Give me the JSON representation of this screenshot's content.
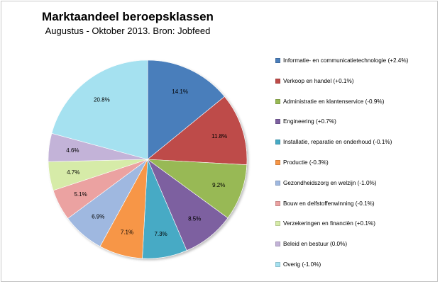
{
  "chart_data": {
    "type": "pie",
    "title": "Marktaandeel beroepsklassen",
    "subtitle": "Augustus - Oktober 2013. Bron: Jobfeed",
    "slices": [
      {
        "legend": "Informatie- en communicatietechnologie (+2.4%)",
        "value": 14.1,
        "label": "14.1%",
        "color": "#4a7ebb"
      },
      {
        "legend": "Verkoop en handel (+0.1%)",
        "value": 11.8,
        "label": "11.8%",
        "color": "#be4b48"
      },
      {
        "legend": "Administratie en klantenservice (-0.9%)",
        "value": 9.2,
        "label": "9.2%",
        "color": "#98b954"
      },
      {
        "legend": "Engineering (+0.7%)",
        "value": 8.5,
        "label": "8.5%",
        "color": "#7d60a0"
      },
      {
        "legend": "Installatie, reparatie en onderhoud (-0.1%)",
        "value": 7.3,
        "label": "7.3%",
        "color": "#46aac5"
      },
      {
        "legend": "Productie (-0.3%)",
        "value": 7.1,
        "label": "7.1%",
        "color": "#f79646"
      },
      {
        "legend": "Gezondheidszorg en welzijn (-1.0%)",
        "value": 6.9,
        "label": "6.9%",
        "color": "#9fb8e0"
      },
      {
        "legend": "Bouw en delfstoffenwinning (-0.1%)",
        "value": 5.1,
        "label": "5.1%",
        "color": "#eba2a1"
      },
      {
        "legend": "Verzekeringen en financiën (+0.1%)",
        "value": 4.7,
        "label": "4.7%",
        "color": "#d6eba8"
      },
      {
        "legend": "Beleid en bestuur (0.0%)",
        "value": 4.6,
        "label": "4.6%",
        "color": "#c3b3d8"
      },
      {
        "legend": "Overig (-1.0%)",
        "value": 20.8,
        "label": "20.8%",
        "color": "#a5e1f0"
      }
    ],
    "legend_position": "right"
  }
}
